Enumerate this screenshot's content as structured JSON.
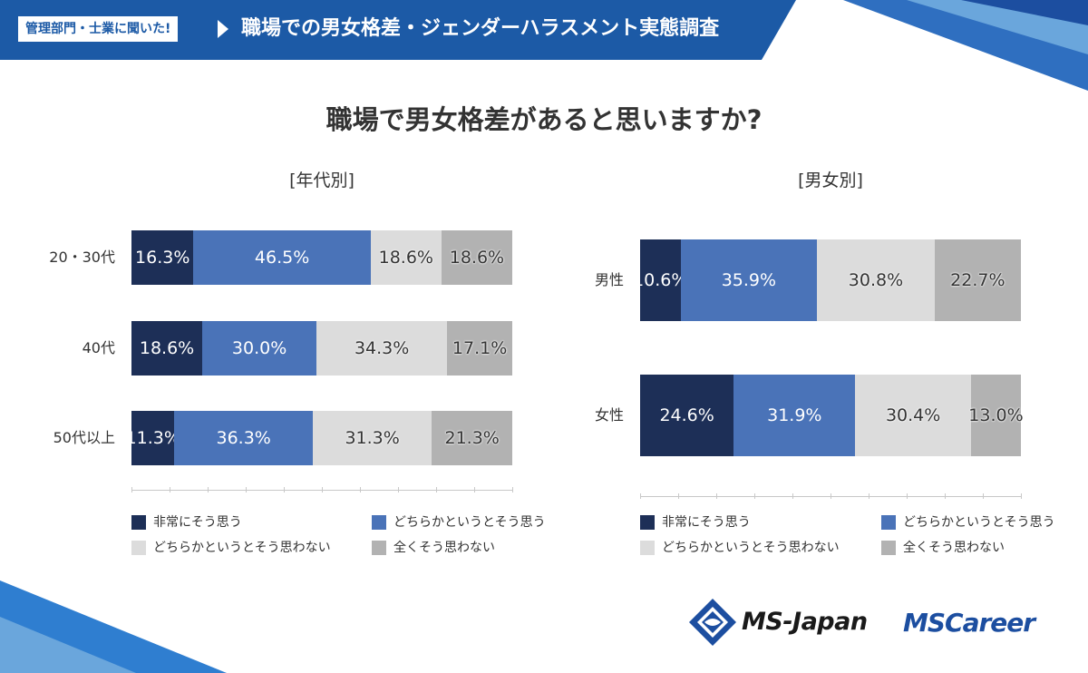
{
  "header": {
    "tag": "管理部門・士業に聞いた!",
    "title": "職場での男女格差・ジェンダーハラスメント実態調査"
  },
  "title": "職場で男女格差があると思いますか?",
  "colors": {
    "very_much": "#1d2f57",
    "somewhat": "#4a73b8",
    "somewhat_not": "#dcdcdc",
    "not_at_all": "#b2b2b2",
    "header": "#1c5aa6"
  },
  "chart_data": [
    {
      "type": "bar",
      "orientation": "horizontal",
      "stacked": true,
      "title": "[年代別]",
      "categories": [
        "20・30代",
        "40代",
        "50代以上"
      ],
      "series": [
        {
          "name": "非常にそう思う",
          "values": [
            16.3,
            18.6,
            11.3
          ],
          "labels": [
            "16.3%",
            "18.6%",
            "11.3%"
          ]
        },
        {
          "name": "どちらかというとそう思う",
          "values": [
            46.5,
            30.0,
            36.3
          ],
          "labels": [
            "46.5%",
            "30.0%",
            "36.3%"
          ]
        },
        {
          "name": "どちらかというとそう思わない",
          "values": [
            18.6,
            34.3,
            31.3
          ],
          "labels": [
            "18.6%",
            "34.3%",
            "31.3%"
          ]
        },
        {
          "name": "全くそう思わない",
          "values": [
            18.6,
            17.1,
            21.3
          ],
          "labels": [
            "18.6%",
            "17.1%",
            "21.3%"
          ]
        }
      ],
      "xlim": [
        0,
        100
      ],
      "legend": "bottom"
    },
    {
      "type": "bar",
      "orientation": "horizontal",
      "stacked": true,
      "title": "[男女別]",
      "categories": [
        "男性",
        "女性"
      ],
      "series": [
        {
          "name": "非常にそう思う",
          "values": [
            10.6,
            24.6
          ],
          "labels": [
            "10.6%",
            "24.6%"
          ]
        },
        {
          "name": "どちらかというとそう思う",
          "values": [
            35.9,
            31.9
          ],
          "labels": [
            "35.9%",
            "31.9%"
          ]
        },
        {
          "name": "どちらかというとそう思わない",
          "values": [
            30.8,
            30.4
          ],
          "labels": [
            "30.8%",
            "30.4%"
          ]
        },
        {
          "name": "全くそう思わない",
          "values": [
            22.7,
            13.0
          ],
          "labels": [
            "22.7%",
            "13.0%"
          ]
        }
      ],
      "xlim": [
        0,
        100
      ],
      "legend": "bottom"
    }
  ],
  "logos": {
    "msjapan": "MS-Japan",
    "mscareer": "MSCareer"
  }
}
